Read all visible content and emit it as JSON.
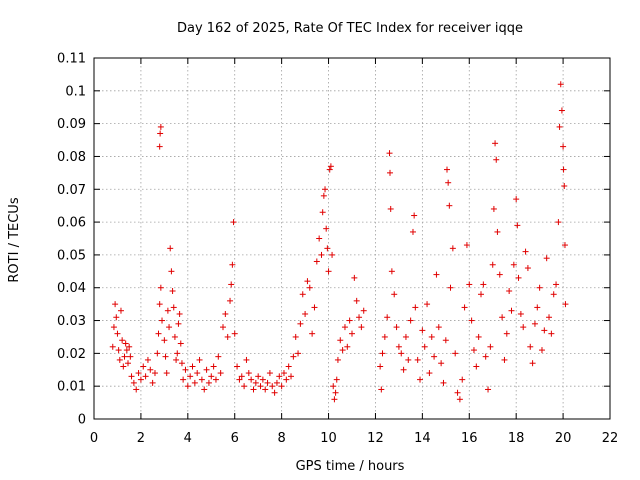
{
  "chart_data": {
    "type": "scatter",
    "title": "Day 162 of 2025, Rate Of TEC Index for receiver iqqe",
    "xlabel": "GPS time / hours",
    "ylabel": "ROTI / TECUs",
    "xlim": [
      0,
      22
    ],
    "ylim": [
      0,
      0.11
    ],
    "xticks": [
      "0",
      "2",
      "4",
      "6",
      "8",
      "10",
      "12",
      "14",
      "16",
      "18",
      "20",
      "22"
    ],
    "yticks": [
      "0",
      "0.01",
      "0.02",
      "0.03",
      "0.04",
      "0.05",
      "0.06",
      "0.07",
      "0.08",
      "0.09",
      "0.1",
      "0.11"
    ],
    "grid": true,
    "marker": "+",
    "color": "#e00000",
    "series": [
      {
        "name": "ROTI",
        "points": [
          [
            0.8,
            0.022
          ],
          [
            0.85,
            0.028
          ],
          [
            0.9,
            0.035
          ],
          [
            0.95,
            0.031
          ],
          [
            1.0,
            0.026
          ],
          [
            1.05,
            0.021
          ],
          [
            1.1,
            0.018
          ],
          [
            1.15,
            0.033
          ],
          [
            1.2,
            0.024
          ],
          [
            1.25,
            0.016
          ],
          [
            1.3,
            0.019
          ],
          [
            1.35,
            0.023
          ],
          [
            1.4,
            0.021
          ],
          [
            1.45,
            0.017
          ],
          [
            1.5,
            0.022
          ],
          [
            1.55,
            0.019
          ],
          [
            1.6,
            0.013
          ],
          [
            1.7,
            0.011
          ],
          [
            1.8,
            0.009
          ],
          [
            1.9,
            0.014
          ],
          [
            2.0,
            0.012
          ],
          [
            2.1,
            0.016
          ],
          [
            2.2,
            0.013
          ],
          [
            2.3,
            0.018
          ],
          [
            2.4,
            0.015
          ],
          [
            2.5,
            0.011
          ],
          [
            2.6,
            0.014
          ],
          [
            2.7,
            0.02
          ],
          [
            2.75,
            0.026
          ],
          [
            2.8,
            0.035
          ],
          [
            2.85,
            0.04
          ],
          [
            2.8,
            0.083
          ],
          [
            2.82,
            0.087
          ],
          [
            2.85,
            0.089
          ],
          [
            2.9,
            0.03
          ],
          [
            3.0,
            0.024
          ],
          [
            3.05,
            0.019
          ],
          [
            3.1,
            0.014
          ],
          [
            3.15,
            0.033
          ],
          [
            3.2,
            0.028
          ],
          [
            3.25,
            0.052
          ],
          [
            3.3,
            0.045
          ],
          [
            3.35,
            0.039
          ],
          [
            3.4,
            0.034
          ],
          [
            3.45,
            0.025
          ],
          [
            3.5,
            0.018
          ],
          [
            3.55,
            0.02
          ],
          [
            3.6,
            0.029
          ],
          [
            3.65,
            0.032
          ],
          [
            3.7,
            0.023
          ],
          [
            3.75,
            0.017
          ],
          [
            3.8,
            0.012
          ],
          [
            3.9,
            0.015
          ],
          [
            4.0,
            0.01
          ],
          [
            4.1,
            0.013
          ],
          [
            4.2,
            0.016
          ],
          [
            4.3,
            0.011
          ],
          [
            4.4,
            0.014
          ],
          [
            4.5,
            0.018
          ],
          [
            4.6,
            0.012
          ],
          [
            4.7,
            0.009
          ],
          [
            4.8,
            0.015
          ],
          [
            4.9,
            0.011
          ],
          [
            5.0,
            0.013
          ],
          [
            5.1,
            0.016
          ],
          [
            5.2,
            0.012
          ],
          [
            5.3,
            0.019
          ],
          [
            5.4,
            0.014
          ],
          [
            5.5,
            0.028
          ],
          [
            5.6,
            0.032
          ],
          [
            5.7,
            0.025
          ],
          [
            5.8,
            0.036
          ],
          [
            5.85,
            0.041
          ],
          [
            5.9,
            0.047
          ],
          [
            5.95,
            0.06
          ],
          [
            6.0,
            0.026
          ],
          [
            6.1,
            0.016
          ],
          [
            6.2,
            0.012
          ],
          [
            6.3,
            0.013
          ],
          [
            6.4,
            0.01
          ],
          [
            6.5,
            0.018
          ],
          [
            6.6,
            0.014
          ],
          [
            6.7,
            0.012
          ],
          [
            6.8,
            0.009
          ],
          [
            6.9,
            0.011
          ],
          [
            7.0,
            0.013
          ],
          [
            7.1,
            0.01
          ],
          [
            7.2,
            0.012
          ],
          [
            7.3,
            0.009
          ],
          [
            7.4,
            0.011
          ],
          [
            7.5,
            0.014
          ],
          [
            7.6,
            0.01
          ],
          [
            7.7,
            0.008
          ],
          [
            7.8,
            0.011
          ],
          [
            7.9,
            0.013
          ],
          [
            8.0,
            0.01
          ],
          [
            8.1,
            0.014
          ],
          [
            8.2,
            0.012
          ],
          [
            8.3,
            0.016
          ],
          [
            8.4,
            0.013
          ],
          [
            8.5,
            0.019
          ],
          [
            8.6,
            0.025
          ],
          [
            8.7,
            0.02
          ],
          [
            8.8,
            0.029
          ],
          [
            8.9,
            0.038
          ],
          [
            9.0,
            0.032
          ],
          [
            9.1,
            0.042
          ],
          [
            9.2,
            0.04
          ],
          [
            9.3,
            0.026
          ],
          [
            9.4,
            0.034
          ],
          [
            9.5,
            0.048
          ],
          [
            9.6,
            0.055
          ],
          [
            9.7,
            0.05
          ],
          [
            9.75,
            0.063
          ],
          [
            9.8,
            0.068
          ],
          [
            9.85,
            0.07
          ],
          [
            9.9,
            0.058
          ],
          [
            9.95,
            0.052
          ],
          [
            10.0,
            0.045
          ],
          [
            10.05,
            0.076
          ],
          [
            10.1,
            0.077
          ],
          [
            10.15,
            0.05
          ],
          [
            10.2,
            0.01
          ],
          [
            10.25,
            0.006
          ],
          [
            10.3,
            0.008
          ],
          [
            10.35,
            0.012
          ],
          [
            10.4,
            0.018
          ],
          [
            10.5,
            0.024
          ],
          [
            10.6,
            0.021
          ],
          [
            10.7,
            0.028
          ],
          [
            10.8,
            0.022
          ],
          [
            10.9,
            0.03
          ],
          [
            11.0,
            0.026
          ],
          [
            11.1,
            0.043
          ],
          [
            11.2,
            0.036
          ],
          [
            11.3,
            0.031
          ],
          [
            11.4,
            0.028
          ],
          [
            11.5,
            0.033
          ],
          [
            12.2,
            0.016
          ],
          [
            12.25,
            0.009
          ],
          [
            12.3,
            0.02
          ],
          [
            12.4,
            0.025
          ],
          [
            12.5,
            0.031
          ],
          [
            12.6,
            0.081
          ],
          [
            12.62,
            0.075
          ],
          [
            12.65,
            0.064
          ],
          [
            12.7,
            0.045
          ],
          [
            12.8,
            0.038
          ],
          [
            12.9,
            0.028
          ],
          [
            13.0,
            0.022
          ],
          [
            13.1,
            0.02
          ],
          [
            13.2,
            0.015
          ],
          [
            13.3,
            0.025
          ],
          [
            13.4,
            0.018
          ],
          [
            13.5,
            0.03
          ],
          [
            13.6,
            0.057
          ],
          [
            13.65,
            0.062
          ],
          [
            13.7,
            0.034
          ],
          [
            13.8,
            0.018
          ],
          [
            13.9,
            0.012
          ],
          [
            14.0,
            0.027
          ],
          [
            14.1,
            0.022
          ],
          [
            14.2,
            0.035
          ],
          [
            14.3,
            0.014
          ],
          [
            14.4,
            0.025
          ],
          [
            14.5,
            0.019
          ],
          [
            14.6,
            0.044
          ],
          [
            14.7,
            0.028
          ],
          [
            14.8,
            0.017
          ],
          [
            14.9,
            0.011
          ],
          [
            15.0,
            0.024
          ],
          [
            15.05,
            0.076
          ],
          [
            15.1,
            0.072
          ],
          [
            15.15,
            0.065
          ],
          [
            15.2,
            0.04
          ],
          [
            15.3,
            0.052
          ],
          [
            15.4,
            0.02
          ],
          [
            15.5,
            0.008
          ],
          [
            15.6,
            0.006
          ],
          [
            15.7,
            0.012
          ],
          [
            15.8,
            0.034
          ],
          [
            15.9,
            0.053
          ],
          [
            16.0,
            0.041
          ],
          [
            16.1,
            0.03
          ],
          [
            16.2,
            0.021
          ],
          [
            16.3,
            0.016
          ],
          [
            16.4,
            0.025
          ],
          [
            16.5,
            0.038
          ],
          [
            16.6,
            0.041
          ],
          [
            16.7,
            0.019
          ],
          [
            16.8,
            0.009
          ],
          [
            16.9,
            0.022
          ],
          [
            17.0,
            0.047
          ],
          [
            17.05,
            0.064
          ],
          [
            17.1,
            0.084
          ],
          [
            17.15,
            0.079
          ],
          [
            17.2,
            0.057
          ],
          [
            17.3,
            0.044
          ],
          [
            17.4,
            0.031
          ],
          [
            17.5,
            0.018
          ],
          [
            17.6,
            0.026
          ],
          [
            17.7,
            0.039
          ],
          [
            17.8,
            0.033
          ],
          [
            17.9,
            0.047
          ],
          [
            18.0,
            0.067
          ],
          [
            18.05,
            0.059
          ],
          [
            18.1,
            0.043
          ],
          [
            18.2,
            0.032
          ],
          [
            18.3,
            0.028
          ],
          [
            18.4,
            0.051
          ],
          [
            18.5,
            0.046
          ],
          [
            18.6,
            0.022
          ],
          [
            18.7,
            0.017
          ],
          [
            18.8,
            0.029
          ],
          [
            18.9,
            0.034
          ],
          [
            19.0,
            0.04
          ],
          [
            19.1,
            0.021
          ],
          [
            19.2,
            0.027
          ],
          [
            19.3,
            0.049
          ],
          [
            19.4,
            0.031
          ],
          [
            19.5,
            0.026
          ],
          [
            19.6,
            0.038
          ],
          [
            19.7,
            0.041
          ],
          [
            19.8,
            0.06
          ],
          [
            19.85,
            0.089
          ],
          [
            19.9,
            0.102
          ],
          [
            19.95,
            0.094
          ],
          [
            20.0,
            0.083
          ],
          [
            20.02,
            0.076
          ],
          [
            20.05,
            0.071
          ],
          [
            20.08,
            0.053
          ],
          [
            20.1,
            0.035
          ]
        ]
      }
    ]
  }
}
